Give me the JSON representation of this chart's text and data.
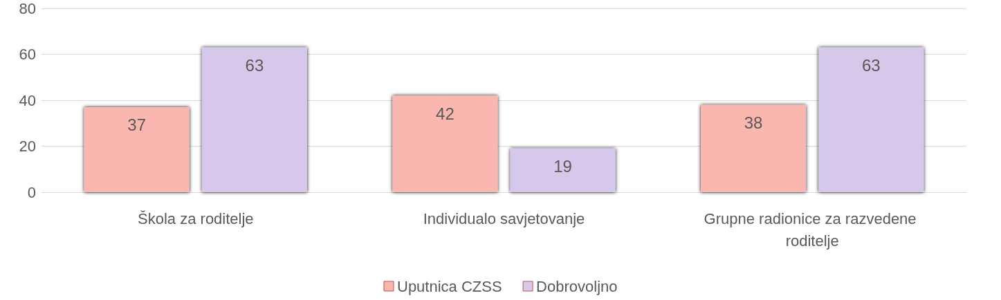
{
  "chart_data": {
    "type": "bar",
    "categories": [
      "Škola za roditelje",
      "Individualo savjetovanje",
      "Grupne radionice za razvedene roditelje"
    ],
    "series": [
      {
        "name": "Uputnica CZSS",
        "color": "#f9b7b0",
        "values": [
          37,
          42,
          38
        ]
      },
      {
        "name": "Dobrovoljno",
        "color": "#d6c8ea",
        "values": [
          63,
          19,
          63
        ]
      }
    ],
    "ylim": [
      0,
      80
    ],
    "yticks": [
      0,
      20,
      40,
      60,
      80
    ],
    "grid": "y",
    "legend": "bottom",
    "data_labels": true
  }
}
